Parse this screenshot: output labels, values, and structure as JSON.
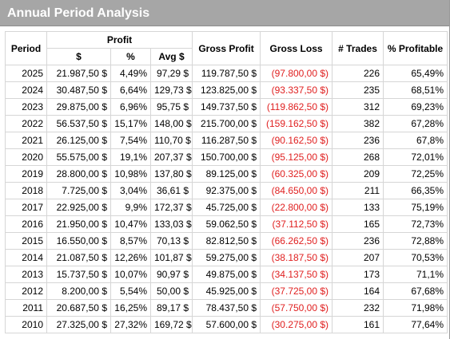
{
  "window": {
    "title": "Annual Period Analysis"
  },
  "table": {
    "headers": {
      "period": "Period",
      "profit": "Profit",
      "profit_dollar": "$",
      "profit_pct": "%",
      "profit_avg": "Avg $",
      "gross_profit": "Gross Profit",
      "gross_loss": "Gross Loss",
      "trades": "# Trades",
      "pct_profitable": "% Profitable"
    },
    "rows": [
      {
        "period": "2025",
        "profit": "21.987,50 $",
        "pct": "4,49%",
        "avg": "97,29 $",
        "gross_profit": "119.787,50 $",
        "gross_loss": "(97.800,00 $)",
        "trades": "226",
        "pct_profitable": "65,49%"
      },
      {
        "period": "2024",
        "profit": "30.487,50 $",
        "pct": "6,64%",
        "avg": "129,73 $",
        "gross_profit": "123.825,00 $",
        "gross_loss": "(93.337,50 $)",
        "trades": "235",
        "pct_profitable": "68,51%"
      },
      {
        "period": "2023",
        "profit": "29.875,00 $",
        "pct": "6,96%",
        "avg": "95,75 $",
        "gross_profit": "149.737,50 $",
        "gross_loss": "(119.862,50 $)",
        "trades": "312",
        "pct_profitable": "69,23%"
      },
      {
        "period": "2022",
        "profit": "56.537,50 $",
        "pct": "15,17%",
        "avg": "148,00 $",
        "gross_profit": "215.700,00 $",
        "gross_loss": "(159.162,50 $)",
        "trades": "382",
        "pct_profitable": "67,28%"
      },
      {
        "period": "2021",
        "profit": "26.125,00 $",
        "pct": "7,54%",
        "avg": "110,70 $",
        "gross_profit": "116.287,50 $",
        "gross_loss": "(90.162,50 $)",
        "trades": "236",
        "pct_profitable": "67,8%"
      },
      {
        "period": "2020",
        "profit": "55.575,00 $",
        "pct": "19,1%",
        "avg": "207,37 $",
        "gross_profit": "150.700,00 $",
        "gross_loss": "(95.125,00 $)",
        "trades": "268",
        "pct_profitable": "72,01%"
      },
      {
        "period": "2019",
        "profit": "28.800,00 $",
        "pct": "10,98%",
        "avg": "137,80 $",
        "gross_profit": "89.125,00 $",
        "gross_loss": "(60.325,00 $)",
        "trades": "209",
        "pct_profitable": "72,25%"
      },
      {
        "period": "2018",
        "profit": "7.725,00 $",
        "pct": "3,04%",
        "avg": "36,61 $",
        "gross_profit": "92.375,00 $",
        "gross_loss": "(84.650,00 $)",
        "trades": "211",
        "pct_profitable": "66,35%"
      },
      {
        "period": "2017",
        "profit": "22.925,00 $",
        "pct": "9,9%",
        "avg": "172,37 $",
        "gross_profit": "45.725,00 $",
        "gross_loss": "(22.800,00 $)",
        "trades": "133",
        "pct_profitable": "75,19%"
      },
      {
        "period": "2016",
        "profit": "21.950,00 $",
        "pct": "10,47%",
        "avg": "133,03 $",
        "gross_profit": "59.062,50 $",
        "gross_loss": "(37.112,50 $)",
        "trades": "165",
        "pct_profitable": "72,73%"
      },
      {
        "period": "2015",
        "profit": "16.550,00 $",
        "pct": "8,57%",
        "avg": "70,13 $",
        "gross_profit": "82.812,50 $",
        "gross_loss": "(66.262,50 $)",
        "trades": "236",
        "pct_profitable": "72,88%"
      },
      {
        "period": "2014",
        "profit": "21.087,50 $",
        "pct": "12,26%",
        "avg": "101,87 $",
        "gross_profit": "59.275,00 $",
        "gross_loss": "(38.187,50 $)",
        "trades": "207",
        "pct_profitable": "70,53%"
      },
      {
        "period": "2013",
        "profit": "15.737,50 $",
        "pct": "10,07%",
        "avg": "90,97 $",
        "gross_profit": "49.875,00 $",
        "gross_loss": "(34.137,50 $)",
        "trades": "173",
        "pct_profitable": "71,1%"
      },
      {
        "period": "2012",
        "profit": "8.200,00 $",
        "pct": "5,54%",
        "avg": "50,00 $",
        "gross_profit": "45.925,00 $",
        "gross_loss": "(37.725,00 $)",
        "trades": "164",
        "pct_profitable": "67,68%"
      },
      {
        "period": "2011",
        "profit": "20.687,50 $",
        "pct": "16,25%",
        "avg": "89,17 $",
        "gross_profit": "78.437,50 $",
        "gross_loss": "(57.750,00 $)",
        "trades": "232",
        "pct_profitable": "71,98%"
      },
      {
        "period": "2010",
        "profit": "27.325,00 $",
        "pct": "27,32%",
        "avg": "169,72 $",
        "gross_profit": "57.600,00 $",
        "gross_loss": "(30.275,00 $)",
        "trades": "161",
        "pct_profitable": "77,64%"
      }
    ]
  }
}
